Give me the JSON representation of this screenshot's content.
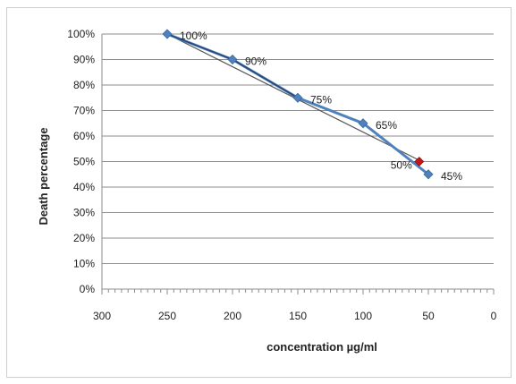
{
  "chart_data": {
    "type": "line",
    "xlabel": "concentration µg/ml",
    "ylabel": "Death percentage",
    "xlim": [
      300,
      0
    ],
    "x_reversed": true,
    "x_ticks": [
      300,
      250,
      200,
      150,
      100,
      50,
      0
    ],
    "ylim": [
      0,
      100
    ],
    "y_ticks": [
      "0%",
      "10%",
      "20%",
      "30%",
      "40%",
      "50%",
      "60%",
      "70%",
      "80%",
      "90%",
      "100%"
    ],
    "grid": true,
    "series": [
      {
        "x": [
          250,
          200,
          150,
          100,
          50
        ],
        "y": [
          100,
          90,
          75,
          65,
          45
        ],
        "labels": [
          "100%",
          "90%",
          "75%",
          "65%",
          "45%"
        ],
        "color": "#4f81bd",
        "marker": "diamond"
      }
    ],
    "trendline": {
      "x": [
        250,
        55
      ],
      "y": [
        100,
        50
      ],
      "color": "#555555"
    },
    "highlight": {
      "x": 57,
      "y": 50,
      "label": "50%",
      "color": "#c0181b"
    }
  }
}
